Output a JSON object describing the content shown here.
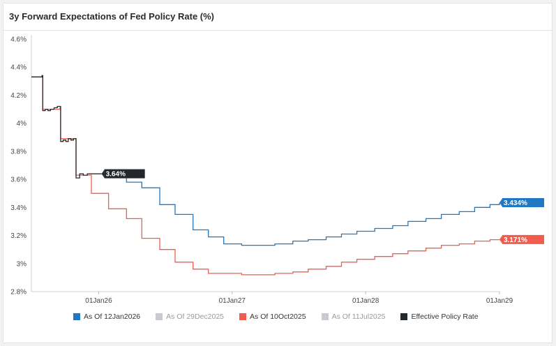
{
  "chart_data": {
    "type": "line",
    "title": "3y Forward Expectations of Fed Policy Rate (%)",
    "ylim": [
      2.8,
      4.6
    ],
    "yticks": [
      "4.6%",
      "4.4%",
      "4.2%",
      "4%",
      "3.8%",
      "3.6%",
      "3.4%",
      "3.2%",
      "3%",
      "2.8%"
    ],
    "ytick_values": [
      4.6,
      4.4,
      4.2,
      4.0,
      3.8,
      3.6,
      3.4,
      3.2,
      3.0,
      2.8
    ],
    "xlim": [
      "2025-07-01",
      "2029-01-01"
    ],
    "xticks": [
      {
        "label": "01Jan26",
        "date": "2026-01-01"
      },
      {
        "label": "01Jan27",
        "date": "2027-01-01"
      },
      {
        "label": "01Jan28",
        "date": "2028-01-01"
      },
      {
        "label": "01Jan29",
        "date": "2029-01-01"
      }
    ],
    "series": [
      {
        "name": "As Of 12Jan2026",
        "color": "#1f78c1",
        "visible": true,
        "points": [
          [
            "2025-12-10",
            3.64
          ],
          [
            "2026-01-28",
            3.63
          ],
          [
            "2026-03-18",
            3.58
          ],
          [
            "2026-04-29",
            3.54
          ],
          [
            "2026-06-17",
            3.42
          ],
          [
            "2026-07-29",
            3.35
          ],
          [
            "2026-09-16",
            3.24
          ],
          [
            "2026-10-28",
            3.19
          ],
          [
            "2026-12-09",
            3.14
          ],
          [
            "2027-01-27",
            3.13
          ],
          [
            "2027-03-17",
            3.13
          ],
          [
            "2027-04-28",
            3.14
          ],
          [
            "2027-06-16",
            3.16
          ],
          [
            "2027-07-28",
            3.17
          ],
          [
            "2027-09-15",
            3.19
          ],
          [
            "2027-10-27",
            3.21
          ],
          [
            "2027-12-08",
            3.23
          ],
          [
            "2028-01-26",
            3.25
          ],
          [
            "2028-03-15",
            3.27
          ],
          [
            "2028-04-26",
            3.3
          ],
          [
            "2028-06-14",
            3.32
          ],
          [
            "2028-07-26",
            3.35
          ],
          [
            "2028-09-13",
            3.37
          ],
          [
            "2028-10-25",
            3.4
          ],
          [
            "2028-12-06",
            3.42
          ],
          [
            "2029-01-01",
            3.434
          ]
        ],
        "end_label": "3.434%"
      },
      {
        "name": "As Of 29Dec2025",
        "color": "#c7cbd1",
        "visible": false,
        "points": []
      },
      {
        "name": "As Of 10Oct2025",
        "color": "#f25c4c",
        "visible": true,
        "points": [
          [
            "2025-07-01",
            4.33
          ],
          [
            "2025-07-30",
            4.33
          ],
          [
            "2025-08-01",
            4.1
          ],
          [
            "2025-09-17",
            4.11
          ],
          [
            "2025-09-19",
            3.89
          ],
          [
            "2025-10-29",
            3.89
          ],
          [
            "2025-10-31",
            3.63
          ],
          [
            "2025-12-10",
            3.63
          ],
          [
            "2025-12-12",
            3.5
          ],
          [
            "2026-01-28",
            3.39
          ],
          [
            "2026-03-18",
            3.32
          ],
          [
            "2026-04-29",
            3.18
          ],
          [
            "2026-06-17",
            3.1
          ],
          [
            "2026-07-29",
            3.01
          ],
          [
            "2026-09-16",
            2.96
          ],
          [
            "2026-10-28",
            2.93
          ],
          [
            "2026-12-09",
            2.93
          ],
          [
            "2027-01-27",
            2.92
          ],
          [
            "2027-03-17",
            2.92
          ],
          [
            "2027-04-28",
            2.93
          ],
          [
            "2027-06-16",
            2.94
          ],
          [
            "2027-07-28",
            2.96
          ],
          [
            "2027-09-15",
            2.98
          ],
          [
            "2027-10-27",
            3.01
          ],
          [
            "2027-12-08",
            3.03
          ],
          [
            "2028-01-26",
            3.05
          ],
          [
            "2028-03-15",
            3.07
          ],
          [
            "2028-04-26",
            3.09
          ],
          [
            "2028-06-14",
            3.11
          ],
          [
            "2028-07-26",
            3.13
          ],
          [
            "2028-09-13",
            3.14
          ],
          [
            "2028-10-25",
            3.16
          ],
          [
            "2028-12-06",
            3.17
          ],
          [
            "2029-01-01",
            3.171
          ]
        ],
        "end_label": "3.171%"
      },
      {
        "name": "As Of 11Jul2025",
        "color": "#c7cbd1",
        "visible": false,
        "points": []
      },
      {
        "name": "Effective Policy Rate",
        "color": "#23282d",
        "visible": true,
        "points": [
          [
            "2025-07-01",
            4.33
          ],
          [
            "2025-07-28",
            4.33
          ],
          [
            "2025-07-30",
            4.34
          ],
          [
            "2025-08-01",
            4.09
          ],
          [
            "2025-08-08",
            4.1
          ],
          [
            "2025-08-15",
            4.09
          ],
          [
            "2025-08-22",
            4.1
          ],
          [
            "2025-09-01",
            4.11
          ],
          [
            "2025-09-10",
            4.12
          ],
          [
            "2025-09-17",
            4.12
          ],
          [
            "2025-09-19",
            3.87
          ],
          [
            "2025-09-26",
            3.88
          ],
          [
            "2025-10-03",
            3.87
          ],
          [
            "2025-10-10",
            3.89
          ],
          [
            "2025-10-17",
            3.88
          ],
          [
            "2025-10-24",
            3.89
          ],
          [
            "2025-10-29",
            3.89
          ],
          [
            "2025-10-31",
            3.61
          ],
          [
            "2025-11-10",
            3.64
          ],
          [
            "2025-11-20",
            3.63
          ],
          [
            "2025-12-01",
            3.64
          ],
          [
            "2025-12-10",
            3.64
          ],
          [
            "2025-12-20",
            3.64
          ],
          [
            "2026-01-09",
            3.64
          ]
        ],
        "end_label": "3.64%"
      }
    ],
    "legend_position": "bottom"
  }
}
